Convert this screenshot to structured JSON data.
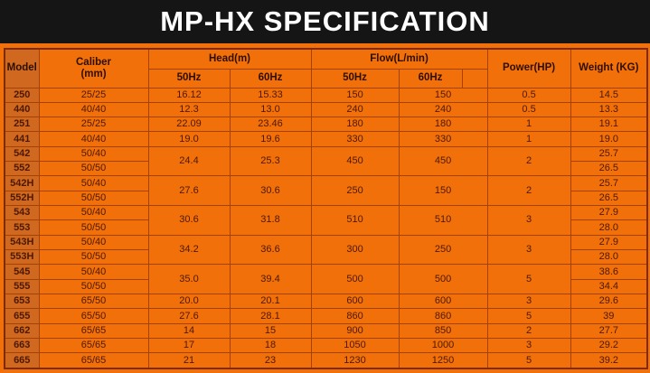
{
  "page": {
    "title": "MP-HX SPECIFICATION"
  },
  "colors": {
    "table_orange": "#f2700a",
    "model_column_orange": "#d0691f",
    "grid_border": "#a34203",
    "outer_border": "#7c2c00",
    "title_bg": "#151515",
    "title_text": "#ffffff",
    "data_text": "#4c1800"
  },
  "table": {
    "headers": {
      "model": "Model",
      "caliber": "Caliber\n(mm)",
      "head": "Head(m)",
      "flow": "Flow(L/min)",
      "hz50": "50Hz",
      "hz60": "60Hz",
      "power": "Power(HP)",
      "weight": "Weight (KG)"
    },
    "rows": [
      {
        "model": "250",
        "caliber": "25/25",
        "head50": "16.12",
        "head60": "15.33",
        "flow50": "150",
        "flow60": "150",
        "power": "0.5",
        "weight": "14.5",
        "rowspan": 1
      },
      {
        "model": "440",
        "caliber": "40/40",
        "head50": "12.3",
        "head60": "13.0",
        "flow50": "240",
        "flow60": "240",
        "power": "0.5",
        "weight": "13.3",
        "rowspan": 1
      },
      {
        "model": "251",
        "caliber": "25/25",
        "head50": "22.09",
        "head60": "23.46",
        "flow50": "180",
        "flow60": "180",
        "power": "1",
        "weight": "19.1",
        "rowspan": 1
      },
      {
        "model": "441",
        "caliber": "40/40",
        "head50": "19.0",
        "head60": "19.6",
        "flow50": "330",
        "flow60": "330",
        "power": "1",
        "weight": "19.0",
        "rowspan": 1
      },
      {
        "model": "542",
        "caliber": "50/40",
        "head50": "24.4",
        "head60": "25.3",
        "flow50": "450",
        "flow60": "450",
        "power": "2",
        "weight": "25.7",
        "rowspan": 2
      },
      {
        "model": "552",
        "caliber": "50/50",
        "weight": "26.5",
        "cont": true
      },
      {
        "model": "542H",
        "caliber": "50/40",
        "head50": "27.6",
        "head60": "30.6",
        "flow50": "250",
        "flow60": "150",
        "power": "2",
        "weight": "25.7",
        "rowspan": 2
      },
      {
        "model": "552H",
        "caliber": "50/50",
        "weight": "26.5",
        "cont": true
      },
      {
        "model": "543",
        "caliber": "50/40",
        "head50": "30.6",
        "head60": "31.8",
        "flow50": "510",
        "flow60": "510",
        "power": "3",
        "weight": "27.9",
        "rowspan": 2
      },
      {
        "model": "553",
        "caliber": "50/50",
        "weight": "28.0",
        "cont": true
      },
      {
        "model": "543H",
        "caliber": "50/40",
        "head50": "34.2",
        "head60": "36.6",
        "flow50": "300",
        "flow60": "250",
        "power": "3",
        "weight": "27.9",
        "rowspan": 2
      },
      {
        "model": "553H",
        "caliber": "50/50",
        "weight": "28.0",
        "cont": true
      },
      {
        "model": "545",
        "caliber": "50/40",
        "head50": "35.0",
        "head60": "39.4",
        "flow50": "500",
        "flow60": "500",
        "power": "5",
        "weight": "38.6",
        "rowspan": 2
      },
      {
        "model": "555",
        "caliber": "50/50",
        "weight": "34.4",
        "cont": true
      },
      {
        "model": "653",
        "caliber": "65/50",
        "head50": "20.0",
        "head60": "20.1",
        "flow50": "600",
        "flow60": "600",
        "power": "3",
        "weight": "29.6",
        "rowspan": 1
      },
      {
        "model": "655",
        "caliber": "65/50",
        "head50": "27.6",
        "head60": "28.1",
        "flow50": "860",
        "flow60": "860",
        "power": "5",
        "weight": "39",
        "rowspan": 1
      },
      {
        "model": "662",
        "caliber": "65/65",
        "head50": "14",
        "head60": "15",
        "flow50": "900",
        "flow60": "850",
        "power": "2",
        "weight": "27.7",
        "rowspan": 1
      },
      {
        "model": "663",
        "caliber": "65/65",
        "head50": "17",
        "head60": "18",
        "flow50": "1050",
        "flow60": "1000",
        "power": "3",
        "weight": "29.2",
        "rowspan": 1
      },
      {
        "model": "665",
        "caliber": "65/65",
        "head50": "21",
        "head60": "23",
        "flow50": "1230",
        "flow60": "1250",
        "power": "5",
        "weight": "39.2",
        "rowspan": 1
      }
    ]
  }
}
